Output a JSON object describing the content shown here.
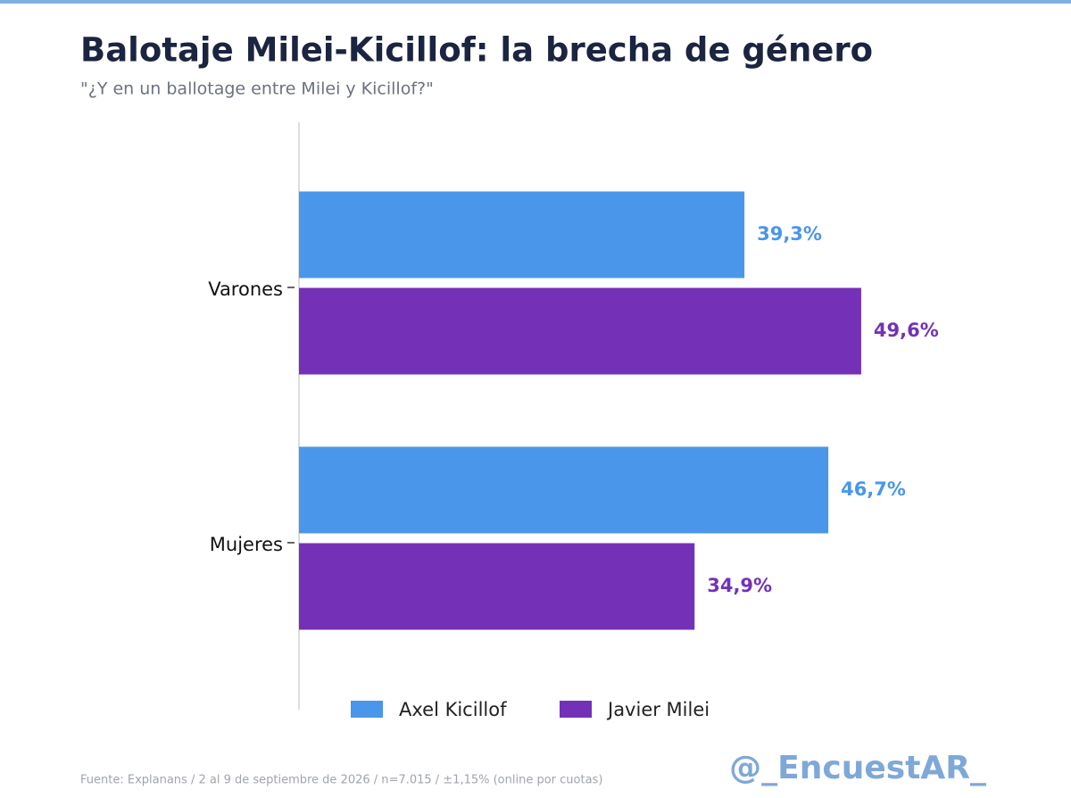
{
  "chart_data": {
    "type": "bar",
    "orientation": "horizontal",
    "title": "Balotaje Milei-Kicillof: la brecha de género",
    "subtitle": "\"¿Y en un ballotage entre Milei y Kicillof?\"",
    "categories": [
      "Varones",
      "Mujeres"
    ],
    "series": [
      {
        "name": "Axel Kicillof",
        "color": "#4a96ea",
        "values": [
          39.3,
          46.7
        ],
        "value_labels": [
          "39,3%",
          "46,7%"
        ]
      },
      {
        "name": "Javier Milei",
        "color": "#7431b8",
        "values": [
          49.6,
          34.9
        ],
        "value_labels": [
          "49,6%",
          "34,9%"
        ]
      }
    ],
    "xlim": [
      0,
      60
    ],
    "legend": "bottom",
    "source": "Fuente: Explanans / 2 al 9 de septiembre de 2026 / n=7.015 / ±1,15% (online por cuotas)",
    "watermark": "@_EncuestAR_"
  }
}
